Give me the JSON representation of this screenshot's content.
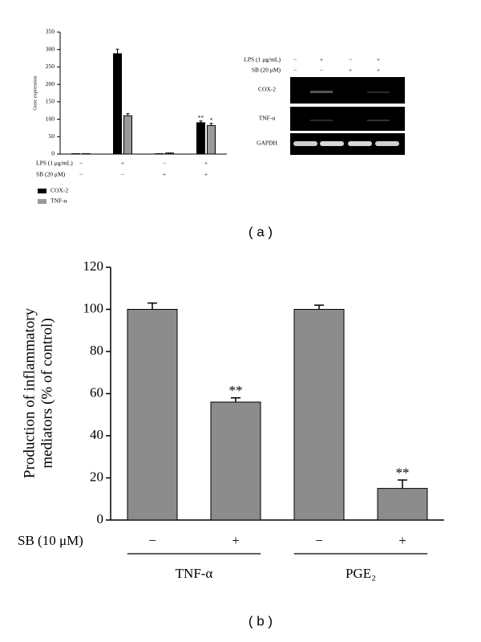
{
  "chart_data": [
    {
      "type": "bar",
      "ylabel": "Gene expression",
      "ylim": [
        0,
        350
      ],
      "yticks": [
        0,
        50,
        100,
        150,
        200,
        250,
        300,
        350
      ],
      "series": [
        {
          "name": "COX-2",
          "color": "#000000",
          "values": [
            1,
            288,
            1,
            90
          ],
          "errors": [
            0,
            13,
            0,
            5
          ],
          "significance": [
            null,
            null,
            null,
            "**"
          ]
        },
        {
          "name": "TNF-α",
          "color": "#9a9a9a",
          "values": [
            1,
            110,
            3,
            82
          ],
          "errors": [
            0,
            6,
            0,
            6
          ],
          "significance": [
            null,
            null,
            null,
            "*"
          ]
        }
      ],
      "conditions": [
        {
          "label": "LPS (1 μg/mL)",
          "values": [
            "−",
            "+",
            "−",
            "+"
          ]
        },
        {
          "label": "SB (20 μM)",
          "values": [
            "−",
            "−",
            "+",
            "+"
          ]
        }
      ]
    },
    {
      "type": "bar",
      "ylabel": [
        "Production of inflammatory",
        "mediators (% of control)"
      ],
      "ylim": [
        0,
        120
      ],
      "yticks": [
        0,
        20,
        40,
        60,
        80,
        100,
        120
      ],
      "series": [
        {
          "color": "#8c8c8c",
          "values": [
            100,
            56,
            100,
            15
          ],
          "errors": [
            3,
            2,
            2,
            4
          ],
          "significance": [
            null,
            "**",
            null,
            "**"
          ]
        }
      ],
      "conditions": [
        {
          "label": "SB (10 μM)",
          "values": [
            "−",
            "+",
            "−",
            "+"
          ]
        }
      ],
      "groups": [
        "TNF-α",
        "PGE₂"
      ]
    }
  ],
  "gel": {
    "conditions": [
      {
        "label": "LPS (1 μg/mL)",
        "values": [
          "−",
          "+",
          "−",
          "+"
        ]
      },
      {
        "label": "SB (20 μM)",
        "values": [
          "−",
          "−",
          "+",
          "+"
        ]
      }
    ],
    "rows": [
      "COX-2",
      "TNF-α",
      "GAPDH"
    ]
  },
  "panel_labels": [
    "( a )",
    "( b )"
  ]
}
